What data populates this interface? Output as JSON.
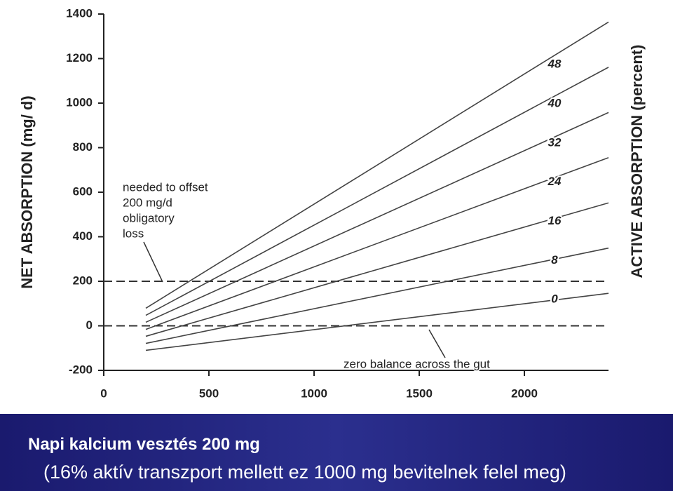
{
  "chart_data": {
    "type": "line",
    "y_label": "NET ABSORPTION (mg/ d)",
    "y2_label": "ACTIVE ABSORPTION (percent)",
    "xlim": [
      0,
      2400
    ],
    "xticks": [
      0,
      500,
      1000,
      1500,
      2000
    ],
    "ylim": [
      -200,
      1400
    ],
    "yticks": [
      -200,
      0,
      200,
      400,
      600,
      800,
      1000,
      1200,
      1400
    ],
    "color": "#444444",
    "series": [
      {
        "name": "0",
        "x": [
          200,
          2050,
          2400
        ],
        "values": [
          -110,
          105,
          146
        ]
      },
      {
        "name": "8",
        "x": [
          200,
          2050,
          2400
        ],
        "values": [
          -79,
          281,
          349
        ]
      },
      {
        "name": "16",
        "x": [
          200,
          2050,
          2400
        ],
        "values": [
          -47,
          457,
          552
        ]
      },
      {
        "name": "24",
        "x": [
          200,
          2050,
          2400
        ],
        "values": [
          -16,
          633,
          755
        ]
      },
      {
        "name": "32",
        "x": [
          200,
          2050,
          2400
        ],
        "values": [
          16,
          808,
          958
        ]
      },
      {
        "name": "40",
        "x": [
          200,
          2050,
          2400
        ],
        "values": [
          47,
          984,
          1161
        ]
      },
      {
        "name": "48",
        "x": [
          200,
          2050,
          2400
        ],
        "values": [
          79,
          1160,
          1364
        ]
      }
    ],
    "reference_lines": [
      200,
      0
    ],
    "annotations": [
      {
        "lines": [
          "needed to offset",
          "200 mg/d",
          "obligatory",
          "loss"
        ]
      },
      {
        "lines": [
          "zero balance across the gut"
        ]
      }
    ]
  },
  "caption": {
    "title": "Napi kalcium vesztés 200 mg",
    "subtitle": "(16% aktív transzport mellett ez 1000 mg bevitelnek felel meg)"
  }
}
